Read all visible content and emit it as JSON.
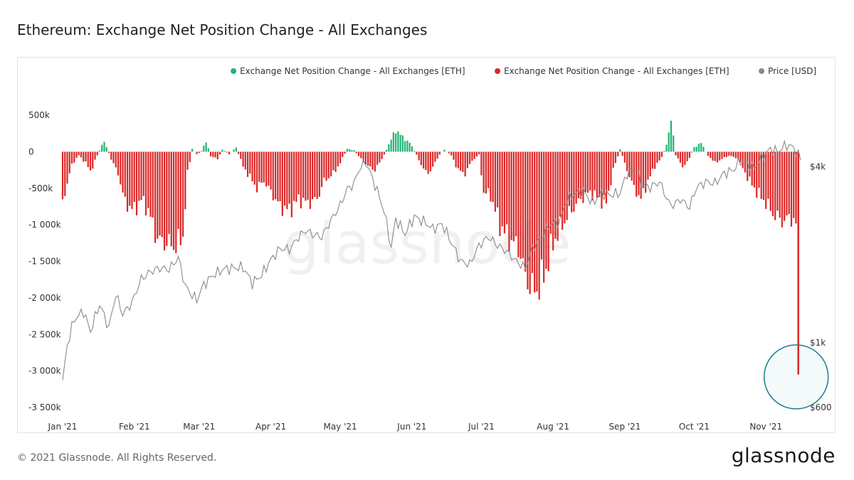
{
  "header": {
    "title": "Ethereum: Exchange Net Position Change - All Exchanges"
  },
  "footer": {
    "copyright": "© 2021 Glassnode. All Rights Reserved.",
    "logo_text": "glassnode"
  },
  "watermark": "glassnode",
  "colors": {
    "positive": "#21b375",
    "negative": "#dc2626",
    "price": "#8a8a8a",
    "highlight_circle": "#1e7d93"
  },
  "chart_data": {
    "type": "bar",
    "title": "Ethereum: Exchange Net Position Change - All Exchanges",
    "legend": [
      {
        "label": "Exchange Net Position Change - All Exchanges [ETH]",
        "color": "#21b375"
      },
      {
        "label": "Exchange Net Position Change - All Exchanges [ETH]",
        "color": "#dc2626"
      },
      {
        "label": "Price [USD]",
        "color": "#8a8a8a"
      }
    ],
    "legend_position": "top-right",
    "grid": false,
    "x_range": [
      "2021-01-01",
      "2021-11-16"
    ],
    "x_tick_labels": [
      "Jan '21",
      "Feb '21",
      "Mar '21",
      "Apr '21",
      "May '21",
      "Jun '21",
      "Jul '21",
      "Aug '21",
      "Sep '21",
      "Oct '21",
      "Nov '21"
    ],
    "y_left_range": [
      -3500000,
      500000
    ],
    "y_left_ticks": [
      {
        "value": 500000,
        "label": "500k"
      },
      {
        "value": 0,
        "label": "0"
      },
      {
        "value": -500000,
        "label": "-500k"
      },
      {
        "value": -1000000,
        "label": "-1 000k"
      },
      {
        "value": -1500000,
        "label": "-1 500k"
      },
      {
        "value": -2000000,
        "label": "-2 000k"
      },
      {
        "value": -2500000,
        "label": "-2 500k"
      },
      {
        "value": -3000000,
        "label": "-3 000k"
      },
      {
        "value": -3500000,
        "label": "-3 500k"
      }
    ],
    "y_right_scale": "log",
    "y_right_range": [
      600,
      6000
    ],
    "y_right_ticks": [
      {
        "value": 4000,
        "label": "$4k"
      },
      {
        "value": 1000,
        "label": "$1k"
      },
      {
        "value": 600,
        "label": "$600"
      }
    ],
    "net_position_keypoints": [
      [
        "2021-01-01",
        -650000
      ],
      [
        "2021-01-03",
        -450000
      ],
      [
        "2021-01-05",
        -170000
      ],
      [
        "2021-01-08",
        -50000
      ],
      [
        "2021-01-11",
        -150000
      ],
      [
        "2021-01-13",
        -270000
      ],
      [
        "2021-01-16",
        -50000
      ],
      [
        "2021-01-19",
        150000
      ],
      [
        "2021-01-22",
        -100000
      ],
      [
        "2021-01-25",
        -300000
      ],
      [
        "2021-01-28",
        -700000
      ],
      [
        "2021-02-01",
        -800000
      ],
      [
        "2021-02-04",
        -650000
      ],
      [
        "2021-02-07",
        -800000
      ],
      [
        "2021-02-11",
        -1200000
      ],
      [
        "2021-02-15",
        -1250000
      ],
      [
        "2021-02-19",
        -1300000
      ],
      [
        "2021-02-22",
        -1150000
      ],
      [
        "2021-02-24",
        -300000
      ],
      [
        "2021-02-26",
        40000
      ],
      [
        "2021-02-28",
        -40000
      ],
      [
        "2021-03-02",
        10000
      ],
      [
        "2021-03-04",
        150000
      ],
      [
        "2021-03-06",
        -60000
      ],
      [
        "2021-03-09",
        -100000
      ],
      [
        "2021-03-11",
        30000
      ],
      [
        "2021-03-14",
        -30000
      ],
      [
        "2021-03-17",
        60000
      ],
      [
        "2021-03-20",
        -200000
      ],
      [
        "2021-03-23",
        -350000
      ],
      [
        "2021-03-26",
        -500000
      ],
      [
        "2021-03-29",
        -400000
      ],
      [
        "2021-04-02",
        -600000
      ],
      [
        "2021-04-05",
        -750000
      ],
      [
        "2021-04-09",
        -800000
      ],
      [
        "2021-04-13",
        -650000
      ],
      [
        "2021-04-17",
        -700000
      ],
      [
        "2021-04-21",
        -650000
      ],
      [
        "2021-04-24",
        -400000
      ],
      [
        "2021-04-28",
        -300000
      ],
      [
        "2021-05-01",
        -150000
      ],
      [
        "2021-05-04",
        40000
      ],
      [
        "2021-05-07",
        20000
      ],
      [
        "2021-05-10",
        -100000
      ],
      [
        "2021-05-13",
        -200000
      ],
      [
        "2021-05-16",
        -250000
      ],
      [
        "2021-05-19",
        -100000
      ],
      [
        "2021-05-22",
        100000
      ],
      [
        "2021-05-25",
        300000
      ],
      [
        "2021-05-28",
        200000
      ],
      [
        "2021-05-31",
        120000
      ],
      [
        "2021-06-03",
        -40000
      ],
      [
        "2021-06-06",
        -250000
      ],
      [
        "2021-06-09",
        -280000
      ],
      [
        "2021-06-12",
        -80000
      ],
      [
        "2021-06-15",
        30000
      ],
      [
        "2021-06-18",
        -50000
      ],
      [
        "2021-06-21",
        -250000
      ],
      [
        "2021-06-24",
        -300000
      ],
      [
        "2021-06-27",
        -120000
      ],
      [
        "2021-06-30",
        -40000
      ],
      [
        "2021-07-02",
        -550000
      ],
      [
        "2021-07-05",
        -600000
      ],
      [
        "2021-07-09",
        -1000000
      ],
      [
        "2021-07-13",
        -1200000
      ],
      [
        "2021-07-17",
        -1300000
      ],
      [
        "2021-07-20",
        -1700000
      ],
      [
        "2021-07-23",
        -1900000
      ],
      [
        "2021-07-26",
        -1850000
      ],
      [
        "2021-07-29",
        -1600000
      ],
      [
        "2021-08-01",
        -1250000
      ],
      [
        "2021-08-05",
        -1000000
      ],
      [
        "2021-08-09",
        -800000
      ],
      [
        "2021-08-13",
        -650000
      ],
      [
        "2021-08-17",
        -550000
      ],
      [
        "2021-08-21",
        -650000
      ],
      [
        "2021-08-24",
        -700000
      ],
      [
        "2021-08-27",
        -250000
      ],
      [
        "2021-08-30",
        30000
      ],
      [
        "2021-09-02",
        -250000
      ],
      [
        "2021-09-05",
        -500000
      ],
      [
        "2021-09-08",
        -650000
      ],
      [
        "2021-09-11",
        -400000
      ],
      [
        "2021-09-14",
        -200000
      ],
      [
        "2021-09-17",
        -80000
      ],
      [
        "2021-09-19",
        100000
      ],
      [
        "2021-09-21",
        450000
      ],
      [
        "2021-09-23",
        -50000
      ],
      [
        "2021-09-26",
        -200000
      ],
      [
        "2021-09-28",
        -150000
      ],
      [
        "2021-10-01",
        60000
      ],
      [
        "2021-10-04",
        120000
      ],
      [
        "2021-10-07",
        -50000
      ],
      [
        "2021-10-10",
        -150000
      ],
      [
        "2021-10-13",
        -100000
      ],
      [
        "2021-10-16",
        -50000
      ],
      [
        "2021-10-20",
        -100000
      ],
      [
        "2021-10-24",
        -350000
      ],
      [
        "2021-10-28",
        -550000
      ],
      [
        "2021-11-01",
        -700000
      ],
      [
        "2021-11-04",
        -850000
      ],
      [
        "2021-11-08",
        -950000
      ],
      [
        "2021-11-12",
        -900000
      ],
      [
        "2021-11-14",
        -1000000
      ],
      [
        "2021-11-15",
        -3050000
      ]
    ],
    "price_keypoints": [
      [
        "2021-01-01",
        730
      ],
      [
        "2021-01-03",
        980
      ],
      [
        "2021-01-06",
        1200
      ],
      [
        "2021-01-10",
        1280
      ],
      [
        "2021-01-13",
        1090
      ],
      [
        "2021-01-17",
        1350
      ],
      [
        "2021-01-21",
        1120
      ],
      [
        "2021-01-24",
        1460
      ],
      [
        "2021-01-27",
        1250
      ],
      [
        "2021-01-31",
        1370
      ],
      [
        "2021-02-04",
        1650
      ],
      [
        "2021-02-08",
        1750
      ],
      [
        "2021-02-12",
        1800
      ],
      [
        "2021-02-16",
        1780
      ],
      [
        "2021-02-20",
        1950
      ],
      [
        "2021-02-23",
        1560
      ],
      [
        "2021-02-26",
        1450
      ],
      [
        "2021-02-28",
        1400
      ],
      [
        "2021-03-03",
        1580
      ],
      [
        "2021-03-07",
        1700
      ],
      [
        "2021-03-12",
        1790
      ],
      [
        "2021-03-16",
        1800
      ],
      [
        "2021-03-20",
        1810
      ],
      [
        "2021-03-24",
        1600
      ],
      [
        "2021-03-28",
        1700
      ],
      [
        "2021-04-01",
        1920
      ],
      [
        "2021-04-05",
        2100
      ],
      [
        "2021-04-09",
        2080
      ],
      [
        "2021-04-13",
        2300
      ],
      [
        "2021-04-16",
        2420
      ],
      [
        "2021-04-20",
        2330
      ],
      [
        "2021-04-23",
        2300
      ],
      [
        "2021-04-27",
        2620
      ],
      [
        "2021-05-01",
        2950
      ],
      [
        "2021-05-04",
        3350
      ],
      [
        "2021-05-07",
        3500
      ],
      [
        "2021-05-09",
        3900
      ],
      [
        "2021-05-12",
        4150
      ],
      [
        "2021-05-14",
        3800
      ],
      [
        "2021-05-17",
        3300
      ],
      [
        "2021-05-20",
        2800
      ],
      [
        "2021-05-23",
        2100
      ],
      [
        "2021-05-25",
        2650
      ],
      [
        "2021-05-29",
        2350
      ],
      [
        "2021-06-02",
        2700
      ],
      [
        "2021-06-06",
        2600
      ],
      [
        "2021-06-10",
        2450
      ],
      [
        "2021-06-14",
        2550
      ],
      [
        "2021-06-18",
        2200
      ],
      [
        "2021-06-22",
        1900
      ],
      [
        "2021-06-26",
        1850
      ],
      [
        "2021-06-30",
        2150
      ],
      [
        "2021-07-04",
        2300
      ],
      [
        "2021-07-08",
        2150
      ],
      [
        "2021-07-12",
        2050
      ],
      [
        "2021-07-16",
        1900
      ],
      [
        "2021-07-20",
        1800
      ],
      [
        "2021-07-23",
        2100
      ],
      [
        "2021-07-27",
        2300
      ],
      [
        "2021-07-31",
        2550
      ],
      [
        "2021-08-04",
        2600
      ],
      [
        "2021-08-07",
        3100
      ],
      [
        "2021-08-11",
        3250
      ],
      [
        "2021-08-14",
        3300
      ],
      [
        "2021-08-18",
        3000
      ],
      [
        "2021-08-22",
        3250
      ],
      [
        "2021-08-26",
        3200
      ],
      [
        "2021-08-30",
        3250
      ],
      [
        "2021-09-02",
        3800
      ],
      [
        "2021-09-06",
        3950
      ],
      [
        "2021-09-08",
        3500
      ],
      [
        "2021-09-12",
        3400
      ],
      [
        "2021-09-16",
        3550
      ],
      [
        "2021-09-20",
        3000
      ],
      [
        "2021-09-22",
        2950
      ],
      [
        "2021-09-25",
        3100
      ],
      [
        "2021-09-29",
        2900
      ],
      [
        "2021-10-02",
        3400
      ],
      [
        "2021-10-06",
        3550
      ],
      [
        "2021-10-10",
        3500
      ],
      [
        "2021-10-14",
        3800
      ],
      [
        "2021-10-18",
        3900
      ],
      [
        "2021-10-21",
        4200
      ],
      [
        "2021-10-24",
        4100
      ],
      [
        "2021-10-27",
        3950
      ],
      [
        "2021-10-30",
        4300
      ],
      [
        "2021-11-03",
        4600
      ],
      [
        "2021-11-06",
        4500
      ],
      [
        "2021-11-10",
        4750
      ],
      [
        "2021-11-13",
        4650
      ],
      [
        "2021-11-16",
        4250
      ]
    ]
  }
}
